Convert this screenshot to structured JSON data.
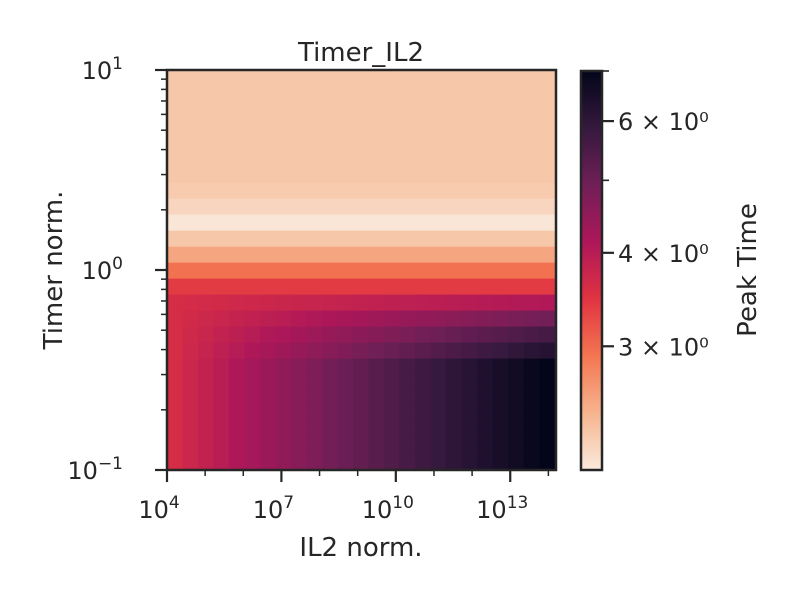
{
  "chart_data": {
    "type": "heatmap",
    "title": "Timer_IL2",
    "xlabel": "IL2 norm.",
    "ylabel": "Timer norm.",
    "x_scale": "log",
    "y_scale": "log",
    "xlim_log10": [
      4,
      14.2
    ],
    "ylim_log10": [
      -1,
      1
    ],
    "x_ticks": [
      {
        "exp": 4,
        "base": "10",
        "sup": "4"
      },
      {
        "exp": 7,
        "base": "10",
        "sup": "7"
      },
      {
        "exp": 10,
        "base": "10",
        "sup": "10"
      },
      {
        "exp": 13,
        "base": "10",
        "sup": "13"
      }
    ],
    "y_ticks": [
      {
        "exp": -1,
        "base": "10",
        "sup": "−1"
      },
      {
        "exp": 0,
        "base": "10",
        "sup": "0"
      },
      {
        "exp": 1,
        "base": "10",
        "sup": "1"
      }
    ],
    "colorbar": {
      "label": "Peak Time",
      "scale": "log",
      "range": [
        2.05,
        7.0
      ],
      "ticks": [
        {
          "value": 3,
          "text": "3 × 10⁰"
        },
        {
          "value": 4,
          "text": "4 × 10⁰"
        },
        {
          "value": 6,
          "text": "6 × 10⁰"
        }
      ],
      "colormap": [
        "#faebdd",
        "#f6b48f",
        "#f37651",
        "#e13342",
        "#ad1759",
        "#701f57",
        "#35193e",
        "#03051a"
      ]
    },
    "x_log10_centers": [
      4.2,
      4.61,
      5.02,
      5.42,
      5.83,
      6.24,
      6.64,
      7.05,
      7.46,
      7.86,
      8.27,
      8.68,
      9.08,
      9.49,
      9.9,
      10.3,
      10.71,
      11.12,
      11.52,
      11.93,
      12.34,
      12.74,
      13.15,
      13.56,
      13.97
    ],
    "y_log10_centers": [
      -0.96,
      -0.88,
      -0.8,
      -0.72,
      -0.64,
      -0.56,
      -0.48,
      -0.4,
      -0.32,
      -0.24,
      -0.16,
      -0.08,
      0.0,
      0.08,
      0.16,
      0.24,
      0.32,
      0.4,
      0.48,
      0.56,
      0.64,
      0.72,
      0.8,
      0.88,
      0.96
    ],
    "row_profiles": [
      {
        "start": 3.6,
        "end": 7.0
      },
      {
        "start": 3.6,
        "end": 7.0
      },
      {
        "start": 3.6,
        "end": 7.0
      },
      {
        "start": 3.6,
        "end": 7.0
      },
      {
        "start": 3.6,
        "end": 7.0
      },
      {
        "start": 3.6,
        "end": 7.0
      },
      {
        "start": 3.6,
        "end": 7.0
      },
      {
        "start": 3.6,
        "end": 6.2
      },
      {
        "start": 3.6,
        "end": 5.6
      },
      {
        "start": 3.6,
        "end": 4.9
      },
      {
        "start": 3.6,
        "end": 4.1
      },
      {
        "start": 3.4,
        "end": 3.4
      },
      {
        "start": 2.95,
        "end": 2.95
      },
      {
        "start": 2.55,
        "end": 2.55
      },
      {
        "start": 2.3,
        "end": 2.3
      },
      {
        "start": 2.08,
        "end": 2.08
      },
      {
        "start": 2.2,
        "end": 2.2
      },
      {
        "start": 2.28,
        "end": 2.28
      },
      {
        "start": 2.3,
        "end": 2.3
      },
      {
        "start": 2.3,
        "end": 2.3
      },
      {
        "start": 2.3,
        "end": 2.3
      },
      {
        "start": 2.3,
        "end": 2.3
      },
      {
        "start": 2.3,
        "end": 2.3
      },
      {
        "start": 2.3,
        "end": 2.3
      },
      {
        "start": 2.3,
        "end": 2.3
      }
    ],
    "grid": false,
    "legend": "colorbar-right"
  }
}
